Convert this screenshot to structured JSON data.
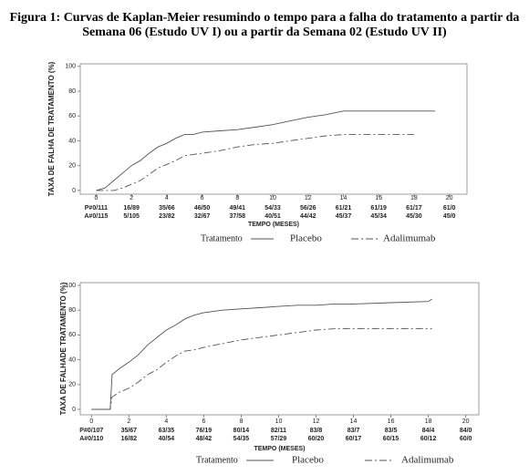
{
  "title": "Figura 1: Curvas de Kaplan-Meier resumindo o tempo para a falha do tratamento a partir da Semana 06 (Estudo UV I) ou a partir da Semana 02 (Estudo UV II)",
  "chart_data": [
    {
      "type": "line",
      "ylabel": "TAXA DE FALHA DE TRATAMENTO (%)",
      "xlabel": "TEMPO (MESES)",
      "x": [
        0,
        0.5,
        1,
        1.5,
        2,
        2.5,
        3,
        3.5,
        4,
        4.5,
        5,
        5.5,
        6,
        7,
        8,
        9,
        10,
        11,
        12,
        13,
        14,
        16,
        18,
        19.2
      ],
      "series": [
        {
          "name": "Placebo",
          "color": "#555555",
          "dash": "none",
          "values": [
            0,
            2,
            8,
            14,
            20,
            24,
            30,
            35,
            38,
            42,
            45,
            45,
            47,
            48,
            49,
            51,
            53,
            56,
            59,
            61,
            64,
            64,
            64,
            64
          ]
        },
        {
          "name": "Adalimumab",
          "color": "#555555",
          "dash": "8 3 2 3",
          "values": [
            0,
            0,
            0,
            2,
            5,
            8,
            13,
            18,
            21,
            24,
            28,
            29,
            30,
            32,
            35,
            37,
            38,
            40,
            42,
            44,
            45,
            45,
            45,
            null
          ]
        }
      ],
      "xlim": [
        -0.9,
        21
      ],
      "xticks": [
        0,
        2,
        4,
        6,
        8,
        10,
        12,
        14,
        16,
        18,
        20
      ],
      "ylim": [
        -3,
        102
      ],
      "yticks": [
        0,
        20,
        40,
        60,
        80,
        100
      ],
      "legend_title": "Tratamento",
      "risk_table": [
        [
          "P#0/111",
          "16/89",
          "35/66",
          "46/50",
          "49/41",
          "54/33",
          "56/26",
          "61/21",
          "61/19",
          "61/17",
          "61/0"
        ],
        [
          "A#0/115",
          "5/105",
          "23/82",
          "32/67",
          "37/58",
          "40/51",
          "44/42",
          "45/37",
          "45/34",
          "45/30",
          "45/0"
        ]
      ]
    },
    {
      "type": "line",
      "ylabel": "TAXA DE FALHADE TRATAMENTO (%)",
      "xlabel": "TEMPO (MESES)",
      "x": [
        0,
        1,
        1.1,
        1.5,
        2,
        2.5,
        3,
        3.5,
        4,
        4.5,
        5,
        5.5,
        6,
        7,
        8,
        9,
        10,
        11,
        12,
        13,
        14,
        16,
        18,
        18.2
      ],
      "series": [
        {
          "name": "Placebo",
          "color": "#555555",
          "dash": "none",
          "values": [
            0,
            0,
            28,
            33,
            38,
            44,
            52,
            58,
            64,
            68,
            73,
            76,
            78,
            80,
            81,
            82,
            83,
            84,
            84,
            85,
            85,
            86,
            87,
            89
          ]
        },
        {
          "name": "Adalimumab",
          "color": "#555555",
          "dash": "8 3 2 3",
          "values": [
            0,
            0,
            10,
            14,
            17,
            22,
            28,
            32,
            38,
            43,
            47,
            48,
            50,
            53,
            56,
            58,
            60,
            62,
            64,
            65,
            65,
            65,
            65,
            65
          ]
        }
      ],
      "xlim": [
        -0.6,
        20.7
      ],
      "xticks": [
        0,
        2,
        4,
        6,
        8,
        10,
        12,
        14,
        16,
        18,
        20
      ],
      "ylim": [
        -4.4,
        102.2
      ],
      "yticks": [
        0,
        20,
        40,
        60,
        80,
        100
      ],
      "legend_title": "Tratamento",
      "risk_table": [
        [
          "P#0/107",
          "35/67",
          "63/35",
          "76/19",
          "80/14",
          "82/11",
          "83/8",
          "83/7",
          "83/5",
          "84/4",
          "84/0"
        ],
        [
          "A#0/110",
          "16/82",
          "40/54",
          "48/42",
          "54/35",
          "57/29",
          "60/20",
          "60/17",
          "60/15",
          "60/12",
          "60/0"
        ]
      ]
    }
  ]
}
